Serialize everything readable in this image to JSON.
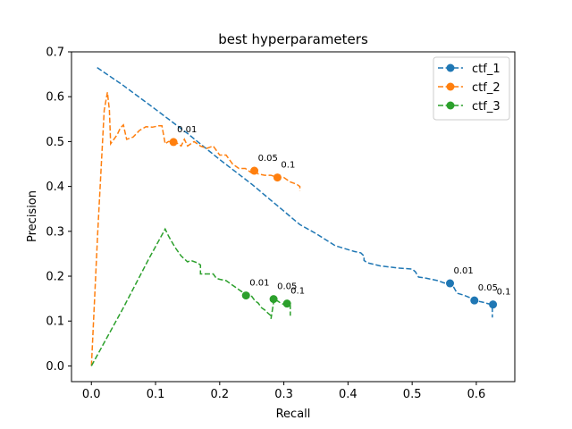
{
  "chart_data": {
    "type": "line",
    "title": "best hyperparameters",
    "xlabel": "Recall",
    "ylabel": "Precision",
    "xlim": [
      -0.031,
      0.66
    ],
    "ylim": [
      -0.035,
      0.7
    ],
    "xticks": [
      "0.0",
      "0.1",
      "0.2",
      "0.3",
      "0.4",
      "0.5",
      "0.6"
    ],
    "xtick_values": [
      0.0,
      0.1,
      0.2,
      0.3,
      0.4,
      0.5,
      0.6
    ],
    "yticks": [
      "0.0",
      "0.1",
      "0.2",
      "0.3",
      "0.4",
      "0.5",
      "0.6",
      "0.7"
    ],
    "ytick_values": [
      0.0,
      0.1,
      0.2,
      0.3,
      0.4,
      0.5,
      0.6,
      0.7
    ],
    "grid": false,
    "legend_position": "top-right",
    "series": [
      {
        "name": "ctf_1",
        "color": "#1f77b4",
        "style": "dashed",
        "x": [
          0.009,
          0.05,
          0.1,
          0.15,
          0.2,
          0.25,
          0.3,
          0.325,
          0.35,
          0.38,
          0.41,
          0.42,
          0.425,
          0.425,
          0.43,
          0.45,
          0.48,
          0.5,
          0.505,
          0.51,
          0.52,
          0.53,
          0.54,
          0.55,
          0.56,
          0.565,
          0.57,
          0.58,
          0.59,
          0.597,
          0.61,
          0.62,
          0.625,
          0.625
        ],
        "y": [
          0.665,
          0.625,
          0.572,
          0.518,
          0.46,
          0.405,
          0.345,
          0.315,
          0.295,
          0.268,
          0.255,
          0.252,
          0.245,
          0.235,
          0.23,
          0.223,
          0.218,
          0.216,
          0.21,
          0.198,
          0.196,
          0.193,
          0.19,
          0.185,
          0.184,
          0.175,
          0.162,
          0.158,
          0.152,
          0.146,
          0.142,
          0.138,
          0.135,
          0.108
        ],
        "markers": [
          {
            "x": 0.559,
            "y": 0.184,
            "label": "0.01"
          },
          {
            "x": 0.597,
            "y": 0.146,
            "label": "0.05"
          },
          {
            "x": 0.626,
            "y": 0.137,
            "label": "0.1"
          }
        ]
      },
      {
        "name": "ctf_2",
        "color": "#ff7f0e",
        "style": "dashed",
        "x": [
          0.0,
          0.01,
          0.02,
          0.025,
          0.028,
          0.03,
          0.04,
          0.045,
          0.05,
          0.055,
          0.065,
          0.075,
          0.085,
          0.095,
          0.105,
          0.11,
          0.115,
          0.12,
          0.13,
          0.14,
          0.145,
          0.15,
          0.16,
          0.17,
          0.18,
          0.19,
          0.2,
          0.21,
          0.22,
          0.225,
          0.23,
          0.24,
          0.25,
          0.255,
          0.26,
          0.27,
          0.28,
          0.29,
          0.3,
          0.305,
          0.31,
          0.32,
          0.325,
          0.325
        ],
        "y": [
          0.0,
          0.3,
          0.57,
          0.61,
          0.57,
          0.495,
          0.515,
          0.53,
          0.537,
          0.505,
          0.51,
          0.525,
          0.533,
          0.532,
          0.535,
          0.535,
          0.495,
          0.5,
          0.5,
          0.49,
          0.505,
          0.49,
          0.5,
          0.49,
          0.485,
          0.49,
          0.47,
          0.47,
          0.45,
          0.445,
          0.44,
          0.44,
          0.43,
          0.435,
          0.428,
          0.425,
          0.425,
          0.42,
          0.42,
          0.415,
          0.41,
          0.405,
          0.4,
          0.39
        ],
        "markers": [
          {
            "x": 0.128,
            "y": 0.499,
            "label": "0.01"
          },
          {
            "x": 0.254,
            "y": 0.435,
            "label": "0.05"
          },
          {
            "x": 0.29,
            "y": 0.42,
            "label": "0.1"
          }
        ]
      },
      {
        "name": "ctf_3",
        "color": "#2ca02c",
        "style": "dashed",
        "x": [
          0.0,
          0.05,
          0.09,
          0.115,
          0.12,
          0.13,
          0.14,
          0.15,
          0.155,
          0.165,
          0.17,
          0.17,
          0.19,
          0.195,
          0.2,
          0.21,
          0.22,
          0.23,
          0.235,
          0.24,
          0.25,
          0.255,
          0.26,
          0.265,
          0.27,
          0.275,
          0.28,
          0.28,
          0.285,
          0.29,
          0.295,
          0.3,
          0.305,
          0.31,
          0.31
        ],
        "y": [
          0.0,
          0.13,
          0.24,
          0.305,
          0.29,
          0.265,
          0.245,
          0.232,
          0.235,
          0.23,
          0.225,
          0.205,
          0.205,
          0.195,
          0.193,
          0.19,
          0.18,
          0.17,
          0.165,
          0.158,
          0.155,
          0.145,
          0.14,
          0.13,
          0.125,
          0.118,
          0.112,
          0.105,
          0.15,
          0.145,
          0.14,
          0.137,
          0.14,
          0.135,
          0.112
        ],
        "markers": [
          {
            "x": 0.241,
            "y": 0.157,
            "label": "0.01"
          },
          {
            "x": 0.284,
            "y": 0.149,
            "label": "0.05"
          },
          {
            "x": 0.305,
            "y": 0.139,
            "label": "0.1"
          }
        ]
      }
    ]
  }
}
